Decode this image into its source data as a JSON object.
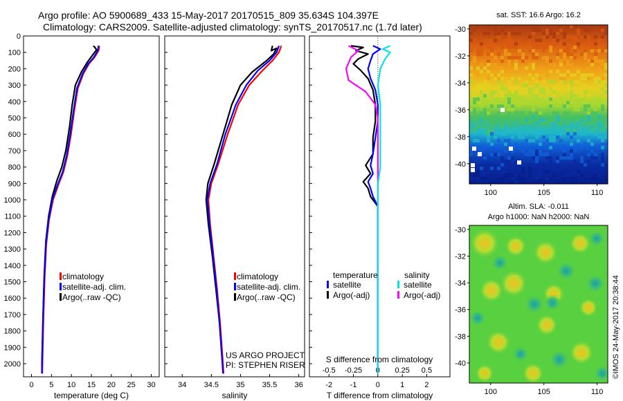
{
  "header": {
    "line1": "Argo profile: AO 5900689_433 15-May-2017 20170515_809 35.634S 104.397E",
    "line2": "Climatology: CARS2009. Satellite-adjusted climatology: synTS_20170517.nc (1.7d later)"
  },
  "side_stamp": "©IMOS 24-May-2017 20:38:44",
  "chart_data": [
    {
      "type": "line",
      "panel": "temperature",
      "xlabel": "temperature (deg C)",
      "xlim": [
        -2,
        32
      ],
      "ylim": [
        2080,
        0
      ],
      "xticks": [
        0,
        5,
        10,
        15,
        20,
        25,
        30
      ],
      "yticks": [
        0,
        100,
        200,
        300,
        400,
        500,
        600,
        700,
        800,
        900,
        1000,
        1100,
        1200,
        1300,
        1400,
        1500,
        1600,
        1700,
        1800,
        1900,
        2000
      ],
      "legend": [
        "climatology",
        "satellite-adj. clim.",
        "Argo(..raw -QC)"
      ],
      "legend_colors": [
        "#ff0000",
        "#0000ff",
        "#000000"
      ],
      "series": [
        {
          "color": "#000000",
          "points": [
            [
              15.5,
              60
            ],
            [
              15.9,
              70
            ],
            [
              16.3,
              85
            ],
            [
              15.2,
              120
            ],
            [
              14.0,
              160
            ],
            [
              12.5,
              220
            ],
            [
              11.0,
              300
            ],
            [
              10.2,
              420
            ],
            [
              9.5,
              560
            ],
            [
              8.6,
              700
            ],
            [
              7.6,
              800
            ],
            [
              6.4,
              880
            ],
            [
              5.2,
              980
            ],
            [
              4.3,
              1100
            ],
            [
              3.6,
              1250
            ],
            [
              3.2,
              1450
            ],
            [
              2.9,
              1700
            ],
            [
              2.7,
              1900
            ],
            [
              2.6,
              2020
            ]
          ]
        },
        {
          "color": "#ff0000",
          "points": [
            [
              17.0,
              60
            ],
            [
              16.8,
              90
            ],
            [
              15.8,
              130
            ],
            [
              14.4,
              170
            ],
            [
              13.0,
              230
            ],
            [
              11.6,
              320
            ],
            [
              10.7,
              460
            ],
            [
              9.9,
              600
            ],
            [
              9.0,
              730
            ],
            [
              8.0,
              830
            ],
            [
              6.7,
              910
            ],
            [
              5.4,
              1000
            ],
            [
              4.4,
              1120
            ],
            [
              3.7,
              1270
            ],
            [
              3.3,
              1470
            ],
            [
              3.0,
              1720
            ],
            [
              2.8,
              1920
            ],
            [
              2.7,
              2060
            ]
          ]
        },
        {
          "color": "#0000ff",
          "points": [
            [
              16.8,
              60
            ],
            [
              16.6,
              90
            ],
            [
              15.6,
              130
            ],
            [
              14.2,
              170
            ],
            [
              12.8,
              230
            ],
            [
              11.4,
              320
            ],
            [
              10.5,
              460
            ],
            [
              9.7,
              600
            ],
            [
              8.8,
              730
            ],
            [
              7.8,
              830
            ],
            [
              6.5,
              910
            ],
            [
              5.2,
              1000
            ],
            [
              4.3,
              1120
            ],
            [
              3.6,
              1270
            ],
            [
              3.2,
              1470
            ],
            [
              2.9,
              1720
            ],
            [
              2.7,
              1920
            ],
            [
              2.6,
              2060
            ]
          ]
        }
      ]
    },
    {
      "type": "line",
      "panel": "salinity",
      "xlabel": "salinity",
      "xlim": [
        33.7,
        36.1
      ],
      "ylim": [
        2080,
        0
      ],
      "xticks": [
        34,
        34.5,
        35,
        35.5,
        36
      ],
      "xtick_labels": [
        "34",
        "34.5",
        "35",
        "35.5",
        "36"
      ],
      "legend": [
        "climatology",
        "satellite-adj. clim.",
        "Argo(..raw -QC)"
      ],
      "legend_colors": [
        "#ff0000",
        "#0000ff",
        "#000000"
      ],
      "annotation": [
        "US ARGO PROJECT",
        "PI: STEPHEN RISER"
      ],
      "series": [
        {
          "color": "#000000",
          "points": [
            [
              35.55,
              60
            ],
            [
              35.53,
              90
            ],
            [
              35.62,
              75
            ],
            [
              35.57,
              110
            ],
            [
              35.45,
              150
            ],
            [
              35.2,
              220
            ],
            [
              35.0,
              300
            ],
            [
              34.85,
              420
            ],
            [
              34.7,
              600
            ],
            [
              34.55,
              780
            ],
            [
              34.44,
              900
            ],
            [
              34.41,
              1000
            ],
            [
              34.45,
              1150
            ],
            [
              34.52,
              1350
            ],
            [
              34.58,
              1550
            ],
            [
              34.64,
              1750
            ],
            [
              34.68,
              1950
            ],
            [
              34.7,
              2020
            ]
          ]
        },
        {
          "color": "#ff0000",
          "points": [
            [
              35.7,
              60
            ],
            [
              35.66,
              100
            ],
            [
              35.55,
              150
            ],
            [
              35.38,
              210
            ],
            [
              35.15,
              300
            ],
            [
              34.96,
              420
            ],
            [
              34.78,
              600
            ],
            [
              34.62,
              780
            ],
            [
              34.5,
              900
            ],
            [
              34.45,
              1000
            ],
            [
              34.48,
              1150
            ],
            [
              34.54,
              1350
            ],
            [
              34.6,
              1550
            ],
            [
              34.65,
              1750
            ],
            [
              34.69,
              1950
            ],
            [
              34.71,
              2060
            ]
          ]
        },
        {
          "color": "#0000ff",
          "points": [
            [
              35.66,
              60
            ],
            [
              35.62,
              100
            ],
            [
              35.5,
              150
            ],
            [
              35.3,
              210
            ],
            [
              35.1,
              300
            ],
            [
              34.92,
              420
            ],
            [
              34.74,
              600
            ],
            [
              34.6,
              780
            ],
            [
              34.48,
              900
            ],
            [
              34.43,
              1000
            ],
            [
              34.47,
              1150
            ],
            [
              34.53,
              1350
            ],
            [
              34.59,
              1550
            ],
            [
              34.64,
              1750
            ],
            [
              34.68,
              1950
            ],
            [
              34.7,
              2060
            ]
          ]
        }
      ]
    },
    {
      "type": "line",
      "panel": "difference",
      "xlabel": "T difference from climatology",
      "xlim": [
        -2.8,
        2.95
      ],
      "ylim": [
        2080,
        0
      ],
      "xticks": [
        -2,
        -1,
        0,
        1,
        2
      ],
      "top_label": "S difference from climatology",
      "top_ticks": [
        -0.5,
        -0.25,
        0,
        0.25,
        0.5
      ],
      "top_tick_labels": [
        "-0.5",
        "-0.25",
        "0",
        "0.25",
        "0.5"
      ],
      "legend_headers": [
        "temperature",
        "salinity"
      ],
      "legend": [
        "satellite",
        "Argo(-adj)",
        "satellite",
        "Argo(-adj)"
      ],
      "legend_colors": [
        "#0000ff",
        "#000000",
        "#00e5e5",
        "#ff00ff"
      ],
      "series": [
        {
          "color": "#000000",
          "points": [
            [
              -1.1,
              60
            ],
            [
              -0.6,
              70
            ],
            [
              -0.9,
              90
            ],
            [
              -0.4,
              110
            ],
            [
              -0.8,
              140
            ],
            [
              -1.0,
              170
            ],
            [
              -0.7,
              210
            ],
            [
              -0.4,
              260
            ],
            [
              -0.2,
              330
            ],
            [
              -0.1,
              420
            ],
            [
              -0.1,
              520
            ],
            [
              -0.2,
              620
            ],
            [
              -0.2,
              720
            ],
            [
              -0.5,
              790
            ],
            [
              -0.3,
              840
            ],
            [
              -0.6,
              890
            ],
            [
              -0.4,
              930
            ],
            [
              -0.3,
              980
            ],
            [
              0.0,
              1040
            ],
            [
              0.0,
              2060
            ]
          ]
        },
        {
          "color": "#0000ff",
          "points": [
            [
              -0.2,
              60
            ],
            [
              0.1,
              80
            ],
            [
              -0.2,
              110
            ],
            [
              -0.3,
              150
            ],
            [
              -0.4,
              200
            ],
            [
              -0.3,
              260
            ],
            [
              -0.1,
              330
            ],
            [
              0.0,
              420
            ],
            [
              0.0,
              520
            ],
            [
              -0.1,
              620
            ],
            [
              -0.2,
              720
            ],
            [
              -0.3,
              790
            ],
            [
              -0.2,
              840
            ],
            [
              -0.4,
              890
            ],
            [
              -0.3,
              930
            ],
            [
              -0.2,
              980
            ],
            [
              0.0,
              1040
            ],
            [
              0.0,
              2060
            ]
          ]
        },
        {
          "color": "#ff00ff",
          "points": [
            [
              -1.2,
              60
            ],
            [
              -0.8,
              90
            ],
            [
              -1.1,
              130
            ],
            [
              -1.3,
              200
            ],
            [
              -1.2,
              270
            ],
            [
              -0.5,
              340
            ],
            [
              -0.1,
              420
            ],
            [
              0.0,
              500
            ],
            [
              0.0,
              2060
            ]
          ]
        },
        {
          "color": "#00e5e5",
          "points": [
            [
              0.5,
              60
            ],
            [
              0.2,
              80
            ],
            [
              0.5,
              100
            ],
            [
              0.3,
              140
            ],
            [
              0.1,
              200
            ],
            [
              0.0,
              300
            ],
            [
              0.1,
              420
            ],
            [
              0.1,
              520
            ],
            [
              0.1,
              620
            ],
            [
              0.1,
              720
            ],
            [
              0.1,
              800
            ],
            [
              0.0,
              900
            ],
            [
              0.0,
              1040
            ],
            [
              0.0,
              2060
            ]
          ]
        }
      ]
    },
    {
      "type": "heatmap",
      "panel": "sst_map",
      "title": "sat. SST: 16.6 Argo: 16.2",
      "xlim": [
        98,
        111
      ],
      "ylim": [
        -41.5,
        -29.7
      ],
      "xticks": [
        100,
        105,
        110
      ],
      "yticks": [
        -30,
        -32,
        -34,
        -36,
        -38,
        -40
      ]
    },
    {
      "type": "heatmap",
      "panel": "sla_map",
      "title": "Altim. SLA: -0.011",
      "subtitle": "Argo h1000: NaN h2000: NaN",
      "xlim": [
        98,
        111
      ],
      "ylim": [
        -41.5,
        -29.7
      ],
      "xticks": [
        100,
        105,
        110
      ],
      "yticks": [
        -30,
        -32,
        -34,
        -36,
        -38,
        -40
      ]
    }
  ]
}
